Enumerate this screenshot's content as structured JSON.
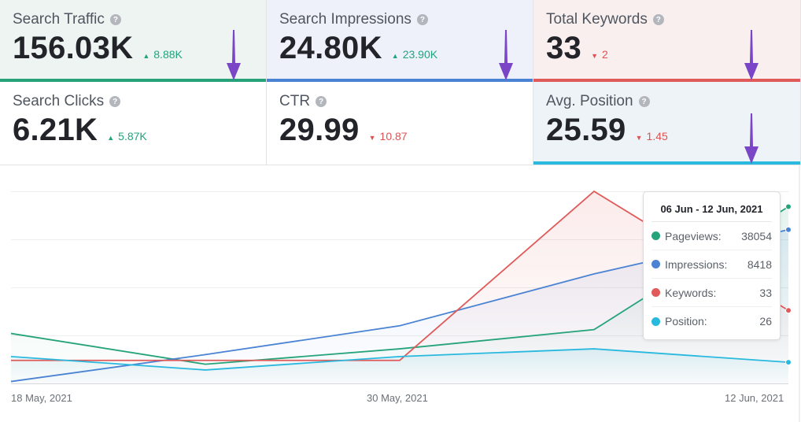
{
  "cards": [
    {
      "label": "Search Traffic",
      "value": "156.03K",
      "delta": "8.88K",
      "dir": "up",
      "color": "#27a37a",
      "bg": "#edf4f2"
    },
    {
      "label": "Search Impressions",
      "value": "24.80K",
      "delta": "23.90K",
      "dir": "up",
      "color": "#4a83d4",
      "bg": "#eef1f9"
    },
    {
      "label": "Total Keywords",
      "value": "33",
      "delta": "2",
      "dir": "down",
      "color": "#e05a5a",
      "bg": "#f9efef"
    },
    {
      "label": "Search Clicks",
      "value": "6.21K",
      "delta": "5.87K",
      "dir": "up",
      "color": "",
      "bg": "#ffffff"
    },
    {
      "label": "CTR",
      "value": "29.99",
      "delta": "10.87",
      "dir": "down",
      "color": "",
      "bg": "#ffffff"
    },
    {
      "label": "Avg. Position",
      "value": "25.59",
      "delta": "1.45",
      "dir": "down",
      "color": "#29b9de",
      "bg": "#edf3f6"
    }
  ],
  "help_glyph": "?",
  "chart_data": {
    "type": "line",
    "x_labels": [
      "18 May, 2021",
      "30 May, 2021",
      "12 Jun, 2021"
    ],
    "points": 5,
    "note": "relative scale 0-100",
    "series": [
      {
        "name": "Pageviews",
        "color": "#27a37a",
        "values": [
          26,
          10,
          18,
          28,
          92
        ]
      },
      {
        "name": "Impressions",
        "color": "#4a83d4",
        "values": [
          1,
          15,
          30,
          57,
          80
        ]
      },
      {
        "name": "Keywords",
        "color": "#e05a5a",
        "values": [
          12,
          12,
          12,
          100,
          38
        ]
      },
      {
        "name": "Position",
        "color": "#29b9de",
        "values": [
          14,
          7,
          14,
          18,
          11
        ]
      }
    ]
  },
  "tooltip": {
    "title": "06 Jun - 12 Jun, 2021",
    "rows": [
      {
        "label": "Pageviews:",
        "value": "38054",
        "color": "#27a37a"
      },
      {
        "label": "Impressions:",
        "value": "8418",
        "color": "#4a83d4"
      },
      {
        "label": "Keywords:",
        "value": "33",
        "color": "#e05a5a"
      },
      {
        "label": "Position:",
        "value": "26",
        "color": "#29b9de"
      }
    ]
  }
}
